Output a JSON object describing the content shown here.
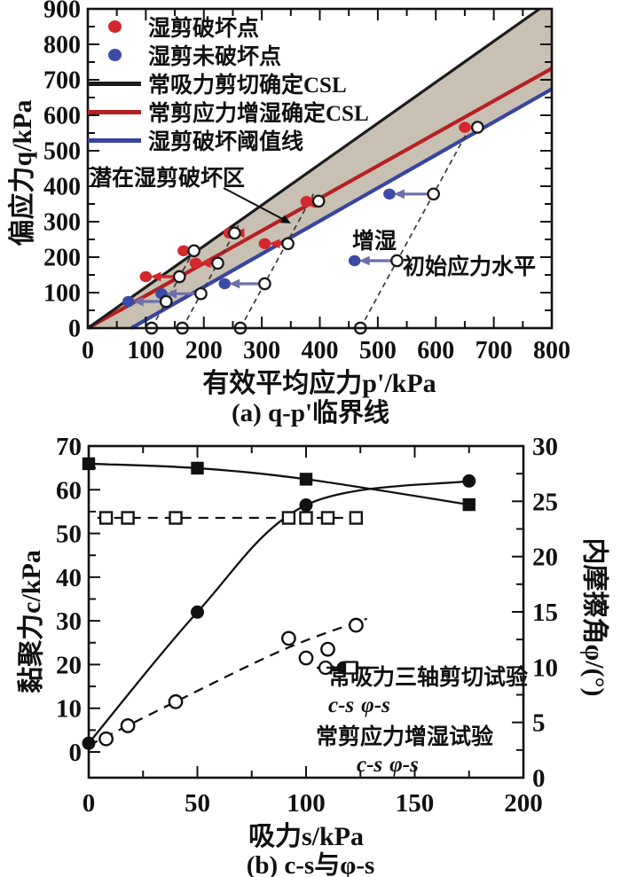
{
  "chart_data": [
    {
      "type": "scatter",
      "panel": "a",
      "title": "(a) q-p'临界线",
      "xlabel": "有效平均应力p'/kPa",
      "ylabel": "偏应力q/kPa",
      "xlim": [
        0,
        800
      ],
      "ylim": [
        0,
        900
      ],
      "x_major_ticks": [
        0,
        100,
        200,
        300,
        400,
        500,
        600,
        700,
        800
      ],
      "y_major_ticks": [
        0,
        100,
        200,
        300,
        400,
        500,
        600,
        700,
        800,
        900
      ],
      "minor_step": 50,
      "grid": false,
      "legend": [
        {
          "label": "湿剪破坏点",
          "marker": "dot",
          "color": "#d2282e"
        },
        {
          "label": "湿剪未破坏点",
          "marker": "dot",
          "color": "#3c4ba5"
        },
        {
          "label": "常吸力剪切确定CSL",
          "marker": "line",
          "color": "#1c1c1c"
        },
        {
          "label": "常剪应力增湿确定CSL",
          "marker": "line",
          "color": "#b52025"
        },
        {
          "label": "湿剪破坏阈值线",
          "marker": "line",
          "color": "#3844a0"
        }
      ],
      "annotations": {
        "zone_label": "潜在湿剪破坏区",
        "wetting_label": "增湿",
        "initial_label": "初始应力水平"
      },
      "colors": {
        "band": "#c8c0b2",
        "failure": "#d2282e",
        "no_failure": "#3c4ba5",
        "csl_shear": "#1c1c1c",
        "csl_wetting": "#b52025",
        "threshold": "#3844a0",
        "loading_path": "#3a3a3a",
        "arrow_no_failure": "#6c6fa9"
      },
      "lines": {
        "csl_shear": {
          "from": [
            0,
            0
          ],
          "to": [
            779,
            900
          ]
        },
        "csl_wetting": {
          "from": [
            0,
            0
          ],
          "to": [
            800,
            732
          ]
        },
        "threshold": {
          "from": [
            75,
            0
          ],
          "to": [
            800,
            674
          ]
        }
      },
      "band_polygon": [
        [
          0,
          0
        ],
        [
          779,
          900
        ],
        [
          800,
          900
        ],
        [
          800,
          674
        ],
        [
          75,
          0
        ]
      ],
      "loading_paths": [
        {
          "p0": 110,
          "q_top": 235
        },
        {
          "p0": 163,
          "q_top": 290
        },
        {
          "p0": 263,
          "q_top": 378
        },
        {
          "p0": 470,
          "q_top": 572
        }
      ],
      "initial_points": [
        [
          110,
          0
        ],
        [
          135,
          75
        ],
        [
          158,
          145
        ],
        [
          183,
          218
        ],
        [
          163,
          0
        ],
        [
          195,
          97
        ],
        [
          224,
          183
        ],
        [
          253,
          268
        ],
        [
          263,
          0
        ],
        [
          305,
          125
        ],
        [
          345,
          238
        ],
        [
          398,
          358
        ],
        [
          470,
          0
        ],
        [
          533,
          190
        ],
        [
          596,
          378
        ],
        [
          672,
          566
        ]
      ],
      "failure_points": [
        [
          100,
          145
        ],
        [
          165,
          218
        ],
        [
          182,
          218
        ],
        [
          186,
          183
        ],
        [
          244,
          268
        ],
        [
          305,
          238
        ],
        [
          377,
          357
        ],
        [
          392,
          355
        ],
        [
          650,
          566
        ]
      ],
      "no_failure_points": [
        [
          70,
          75
        ],
        [
          127,
          97
        ],
        [
          236,
          125
        ],
        [
          460,
          190
        ],
        [
          520,
          378
        ]
      ],
      "wetting_arrows": [
        {
          "from": [
            158,
            145
          ],
          "to": [
            100,
            145
          ],
          "kind": "failure"
        },
        {
          "from": [
            183,
            218
          ],
          "to": [
            165,
            218
          ],
          "kind": "failure"
        },
        {
          "from": [
            224,
            183
          ],
          "to": [
            186,
            183
          ],
          "kind": "failure"
        },
        {
          "from": [
            253,
            268
          ],
          "to": [
            244,
            268
          ],
          "kind": "failure"
        },
        {
          "from": [
            345,
            238
          ],
          "to": [
            305,
            238
          ],
          "kind": "failure"
        },
        {
          "from": [
            398,
            358
          ],
          "to": [
            377,
            357
          ],
          "kind": "failure"
        },
        {
          "from": [
            672,
            566
          ],
          "to": [
            650,
            566
          ],
          "kind": "failure"
        },
        {
          "from": [
            135,
            75
          ],
          "to": [
            70,
            75
          ],
          "kind": "no_failure"
        },
        {
          "from": [
            195,
            97
          ],
          "to": [
            127,
            97
          ],
          "kind": "no_failure"
        },
        {
          "from": [
            305,
            125
          ],
          "to": [
            236,
            125
          ],
          "kind": "no_failure"
        },
        {
          "from": [
            533,
            190
          ],
          "to": [
            460,
            190
          ],
          "kind": "no_failure"
        },
        {
          "from": [
            596,
            378
          ],
          "to": [
            520,
            378
          ],
          "kind": "no_failure"
        }
      ]
    },
    {
      "type": "line-scatter",
      "panel": "b",
      "title": "(b) c-s与φ-s",
      "xlabel": "吸力s/kPa",
      "ylabel_left": "黏聚力c/kPa",
      "ylabel_right": "内摩擦角φ/(°)",
      "xlim": [
        0,
        200
      ],
      "ylim_left": [
        0,
        70
      ],
      "ylim_right": [
        0,
        30
      ],
      "x_major_ticks": [
        0,
        50,
        100,
        150,
        200
      ],
      "y_left_ticks": [
        0,
        10,
        20,
        30,
        40,
        50,
        60,
        70
      ],
      "y_right_ticks": [
        0,
        5,
        10,
        15,
        20,
        25,
        30
      ],
      "grid": false,
      "legend": {
        "group1": "常吸力三轴剪切试验",
        "group2": "常剪应力增湿试验",
        "cs_label": "c-s",
        "phi_label": "φ-s"
      },
      "series": [
        {
          "name": "常吸力三轴剪切试验 c-s",
          "axis": "left",
          "marker": "filled_circle",
          "line": "solid",
          "x": [
            0,
            50,
            100,
            175
          ],
          "y": [
            2,
            32,
            56.5,
            62
          ]
        },
        {
          "name": "常吸力三轴剪切试验 φ-s",
          "axis": "right",
          "marker": "filled_square",
          "line": "solid",
          "x": [
            0,
            50,
            100,
            175
          ],
          "y": [
            28.4,
            28,
            27,
            24.7
          ]
        },
        {
          "name": "常剪应力增湿试验 c-s",
          "axis": "left",
          "marker": "open_circle",
          "line": "dashed",
          "x": [
            8,
            18,
            40,
            92,
            100,
            110,
            123
          ],
          "y": [
            3,
            6,
            11.5,
            26,
            21.5,
            23.5,
            29
          ],
          "trend": [
            [
              0,
              1.5
            ],
            [
              40,
              11.5
            ],
            [
              90,
              23.5
            ],
            [
              128,
              30.5
            ]
          ]
        },
        {
          "name": "常剪应力增湿试验 φ-s",
          "axis": "right",
          "marker": "open_square",
          "line": "dashed",
          "x": [
            8,
            18,
            40,
            92,
            100,
            110,
            123
          ],
          "y": [
            23.5,
            23.5,
            23.5,
            23.5,
            23.5,
            23.5,
            23.5
          ],
          "trend": [
            [
              4,
              23.5
            ],
            [
              128,
              23.5
            ]
          ]
        }
      ]
    }
  ]
}
